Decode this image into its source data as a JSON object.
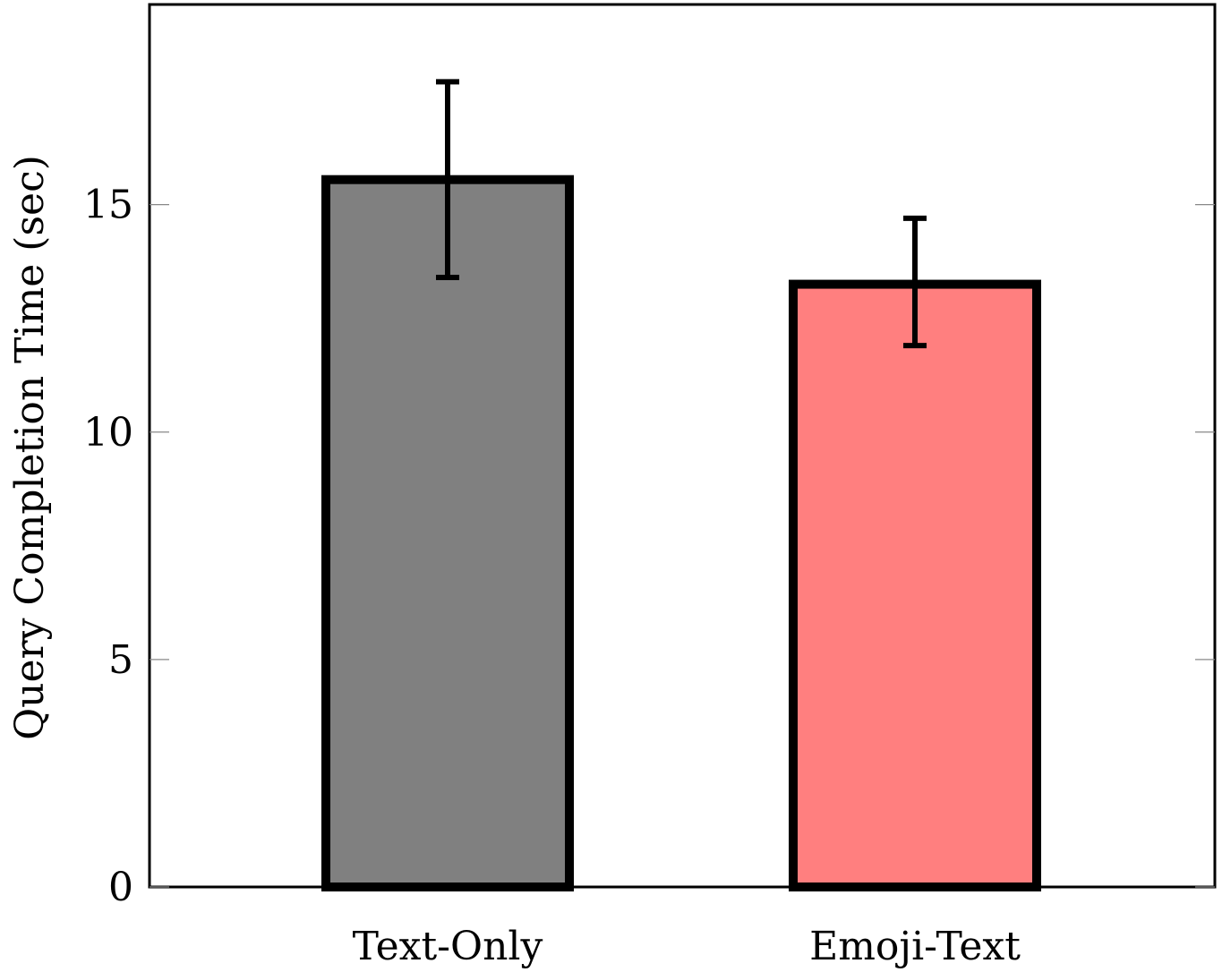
{
  "chart_data": {
    "type": "bar",
    "title": "",
    "xlabel": "",
    "ylabel": "Query Completion Time (sec)",
    "categories": [
      "Text-Only",
      "Emoji-Text"
    ],
    "values": [
      15.55,
      13.25
    ],
    "errors": [
      {
        "low": 13.4,
        "high": 17.7
      },
      {
        "low": 11.9,
        "high": 14.7
      }
    ],
    "colors": [
      "#808080",
      "#ff7f7f"
    ],
    "edge_color": "#000000",
    "ylim": [
      0,
      19.4
    ],
    "yticks": [
      0,
      5,
      10,
      15
    ],
    "ytick_labels": [
      "0",
      "5",
      "10",
      "15"
    ],
    "grid": false,
    "legend": false
  }
}
